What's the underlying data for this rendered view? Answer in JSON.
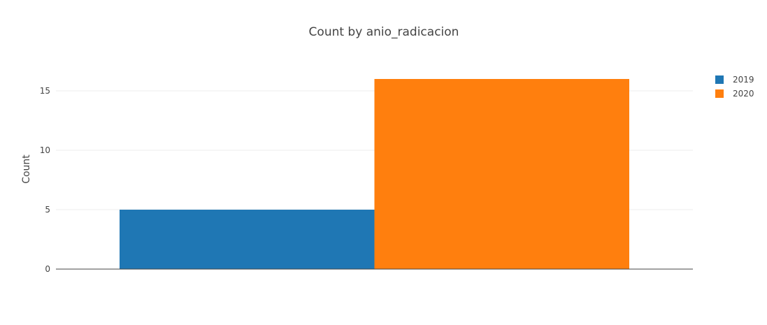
{
  "chart_data": {
    "type": "bar",
    "title": "Count by anio_radicacion",
    "xlabel": "",
    "ylabel": "Count",
    "ylim": [
      0,
      17
    ],
    "yticks": [
      0,
      5,
      10,
      15
    ],
    "grid": true,
    "legend_position": "top-right",
    "series": [
      {
        "name": "2019",
        "value": 5,
        "color": "#1f77b4"
      },
      {
        "name": "2020",
        "value": 16,
        "color": "#ff7f0e"
      }
    ]
  }
}
